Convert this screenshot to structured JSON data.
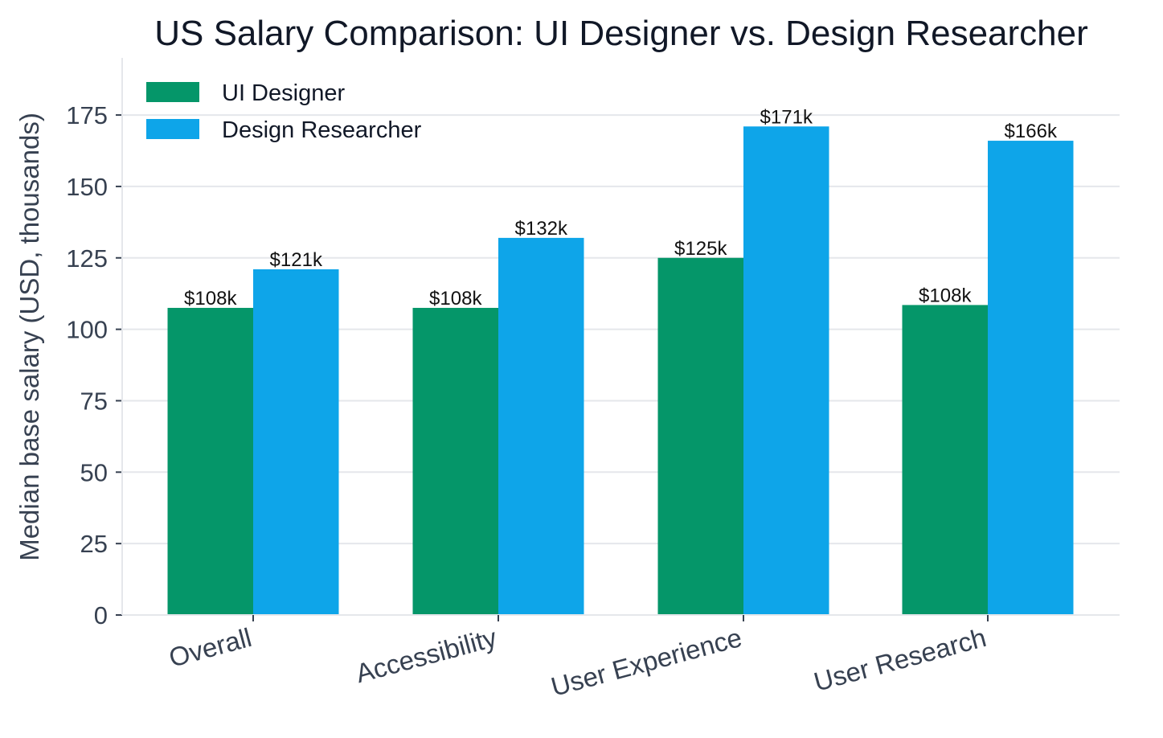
{
  "chart_data": {
    "type": "bar",
    "title": "US Salary Comparison: UI Designer vs. Design Researcher",
    "xlabel": "",
    "ylabel": "Median base salary (USD, thousands)",
    "categories": [
      "Overall",
      "Accessibility",
      "User Experience",
      "User Research"
    ],
    "series": [
      {
        "name": "UI Designer",
        "color": "#059669",
        "values": [
          107.5,
          107.5,
          125,
          108.5
        ],
        "labels": [
          "$108k",
          "$108k",
          "$125k",
          "$108k"
        ]
      },
      {
        "name": "Design Researcher",
        "color": "#0ea5e9",
        "values": [
          121,
          132,
          171,
          166
        ],
        "labels": [
          "$121k",
          "$132k",
          "$171k",
          "$166k"
        ]
      }
    ],
    "ylim": [
      0,
      195
    ],
    "yticks": [
      0,
      25,
      50,
      75,
      100,
      125,
      150,
      175
    ],
    "grid": "horizontal",
    "legend_position": "top-left",
    "x_tick_rotation": "slanted"
  }
}
